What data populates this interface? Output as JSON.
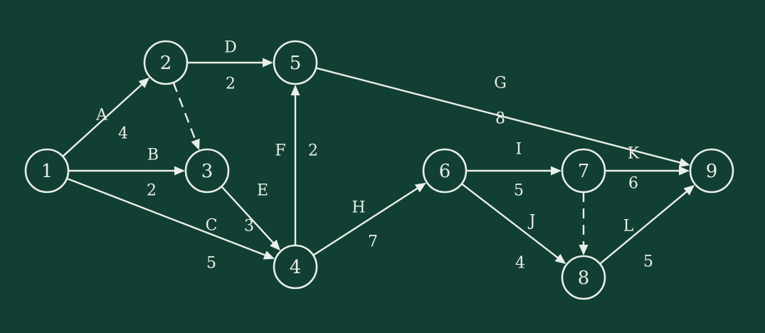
{
  "colors": {
    "background": "#123f33",
    "chalk": "#e9efe9"
  },
  "nodes": [
    {
      "id": "1",
      "label": "1"
    },
    {
      "id": "2",
      "label": "2"
    },
    {
      "id": "3",
      "label": "3"
    },
    {
      "id": "4",
      "label": "4"
    },
    {
      "id": "5",
      "label": "5"
    },
    {
      "id": "6",
      "label": "6"
    },
    {
      "id": "7",
      "label": "7"
    },
    {
      "id": "8",
      "label": "8"
    },
    {
      "id": "9",
      "label": "9"
    }
  ],
  "edges": [
    {
      "from": "1",
      "to": "2",
      "label": "A",
      "weight": "4",
      "dashed": false
    },
    {
      "from": "1",
      "to": "3",
      "label": "B",
      "weight": "2",
      "dashed": false
    },
    {
      "from": "1",
      "to": "4",
      "label": "C",
      "weight": "5",
      "dashed": false
    },
    {
      "from": "2",
      "to": "5",
      "label": "D",
      "weight": "2",
      "dashed": false
    },
    {
      "from": "2",
      "to": "3",
      "label": "",
      "weight": "",
      "dashed": true
    },
    {
      "from": "3",
      "to": "4",
      "label": "E",
      "weight": "3",
      "dashed": false
    },
    {
      "from": "4",
      "to": "5",
      "label": "F",
      "weight": "2",
      "dashed": false
    },
    {
      "from": "5",
      "to": "9",
      "label": "G",
      "weight": "8",
      "dashed": false
    },
    {
      "from": "4",
      "to": "6",
      "label": "H",
      "weight": "7",
      "dashed": false
    },
    {
      "from": "6",
      "to": "7",
      "label": "I",
      "weight": "5",
      "dashed": false
    },
    {
      "from": "6",
      "to": "8",
      "label": "J",
      "weight": "4",
      "dashed": false
    },
    {
      "from": "7",
      "to": "9",
      "label": "K",
      "weight": "6",
      "dashed": false
    },
    {
      "from": "7",
      "to": "8",
      "label": "",
      "weight": "",
      "dashed": true
    },
    {
      "from": "8",
      "to": "9",
      "label": "L",
      "weight": "5",
      "dashed": false
    }
  ]
}
